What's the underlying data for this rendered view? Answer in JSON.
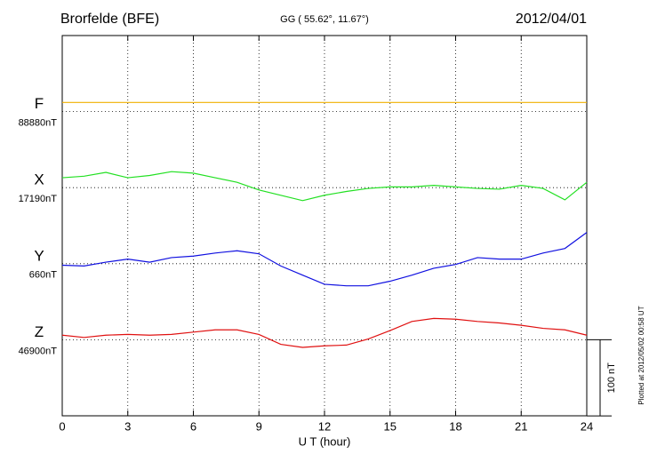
{
  "chart_data": {
    "type": "line",
    "title": "Brorfelde (BFE)",
    "subtitle": "GG ( 55.62°,  11.67°)",
    "date": "2012/04/01",
    "xlabel": "U T (hour)",
    "plotted_note": "Plotted at 2012/05/02 00:58 UT",
    "xlim": [
      0,
      24
    ],
    "xticks": [
      0,
      3,
      6,
      9,
      12,
      15,
      18,
      21,
      24
    ],
    "grid": true,
    "scale_bar": {
      "value": 100,
      "label": "100 nT"
    },
    "x": [
      0,
      1,
      2,
      3,
      4,
      5,
      6,
      7,
      8,
      9,
      10,
      11,
      12,
      13,
      14,
      15,
      16,
      17,
      18,
      19,
      20,
      21,
      22,
      23,
      24
    ],
    "series": [
      {
        "name": "F",
        "color": "#f0b000",
        "baseline_label": "88880nT",
        "values": [
          12,
          12,
          12,
          12,
          12,
          12,
          12,
          12,
          12,
          12,
          12,
          12,
          12,
          12,
          12,
          12,
          12,
          12,
          12,
          12,
          12,
          12,
          12,
          12,
          12
        ]
      },
      {
        "name": "X",
        "color": "#22e022",
        "baseline_label": "17190nT",
        "values": [
          13,
          15,
          20,
          13,
          16,
          21,
          19,
          13,
          7,
          -3,
          -10,
          -17,
          -10,
          -5,
          -1,
          1,
          1,
          3,
          1,
          -1,
          -2,
          3,
          -1,
          -16,
          7
        ]
      },
      {
        "name": "Y",
        "color": "#1010e0",
        "baseline_label": "660nT",
        "values": [
          -2,
          -3,
          2,
          6,
          2,
          8,
          10,
          14,
          17,
          13,
          -3,
          -15,
          -27,
          -29,
          -29,
          -23,
          -15,
          -6,
          -1,
          8,
          6,
          6,
          14,
          20,
          41
        ]
      },
      {
        "name": "Z",
        "color": "#e01010",
        "baseline_label": "46900nT",
        "values": [
          6,
          3,
          6,
          7,
          6,
          7,
          10,
          13,
          13,
          7,
          -6,
          -10,
          -8,
          -7,
          1,
          12,
          24,
          28,
          27,
          24,
          22,
          19,
          15,
          13,
          6
        ]
      }
    ]
  }
}
